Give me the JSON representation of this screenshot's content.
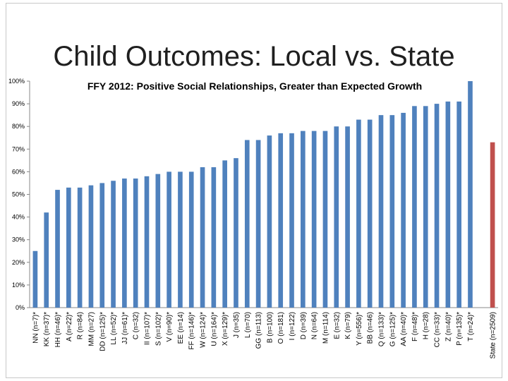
{
  "slide": {
    "title": "Child Outcomes: Local vs. State"
  },
  "chart_data": {
    "type": "bar",
    "title": "FFY 2012: Positive Social Relationships, Greater than Expected Growth",
    "xlabel": "",
    "ylabel": "",
    "ylim": [
      0,
      100
    ],
    "yticks": [
      0,
      10,
      20,
      30,
      40,
      50,
      60,
      70,
      80,
      90,
      100
    ],
    "ytick_labels": [
      "0%",
      "10%",
      "20%",
      "30%",
      "40%",
      "50%",
      "60%",
      "70%",
      "80%",
      "90%",
      "100%"
    ],
    "grid": false,
    "legend": "none",
    "colors": {
      "local": "#4f81bd",
      "state": "#c0504d"
    },
    "categories": [
      "NN (n=7)*",
      "KK (n=37)*",
      "HH (n=46)*",
      "A (n=22)*",
      "R (n=84)",
      "MM (n=27)",
      "DD (n=125)*",
      "LL (n=52)*",
      "JJ (n=61)*",
      "C (n=32)",
      "II (n=107)*",
      "S (n=102)*",
      "V (n=90)*",
      "EE (n=14)",
      "FF (n=146)*",
      "W (n=124)*",
      "U (n=164)*",
      "X (n=129)*",
      "J (n=35)",
      "L (n=70)",
      "GG (n=113)",
      "B (n=100)",
      "O (n=181)",
      "I (n=122)",
      "D (n=39)",
      "N (n=64)",
      "M (n=114)",
      "E (n=32)",
      "K (n=79)",
      "Y (n=556)*",
      "BB (n=46)",
      "Q (n=133)*",
      "G (n=125)*",
      "AA (n=40)*",
      "F (n=48)*",
      "H (n=28)",
      "CC (n=33)*",
      "Z (n=40)*",
      "P (n=135)*",
      "T (n=24)*",
      "",
      "State (n=2509)"
    ],
    "values": [
      25,
      42,
      52,
      53,
      53,
      54,
      55,
      56,
      57,
      57,
      58,
      59,
      60,
      60,
      60,
      62,
      62,
      65,
      66,
      74,
      74,
      76,
      77,
      77,
      78,
      78,
      78,
      80,
      80,
      83,
      83,
      85,
      85,
      86,
      89,
      89,
      90,
      91,
      91,
      100,
      null,
      73
    ],
    "series_kind": [
      "local",
      "local",
      "local",
      "local",
      "local",
      "local",
      "local",
      "local",
      "local",
      "local",
      "local",
      "local",
      "local",
      "local",
      "local",
      "local",
      "local",
      "local",
      "local",
      "local",
      "local",
      "local",
      "local",
      "local",
      "local",
      "local",
      "local",
      "local",
      "local",
      "local",
      "local",
      "local",
      "local",
      "local",
      "local",
      "local",
      "local",
      "local",
      "local",
      "local",
      "gap",
      "state"
    ]
  }
}
